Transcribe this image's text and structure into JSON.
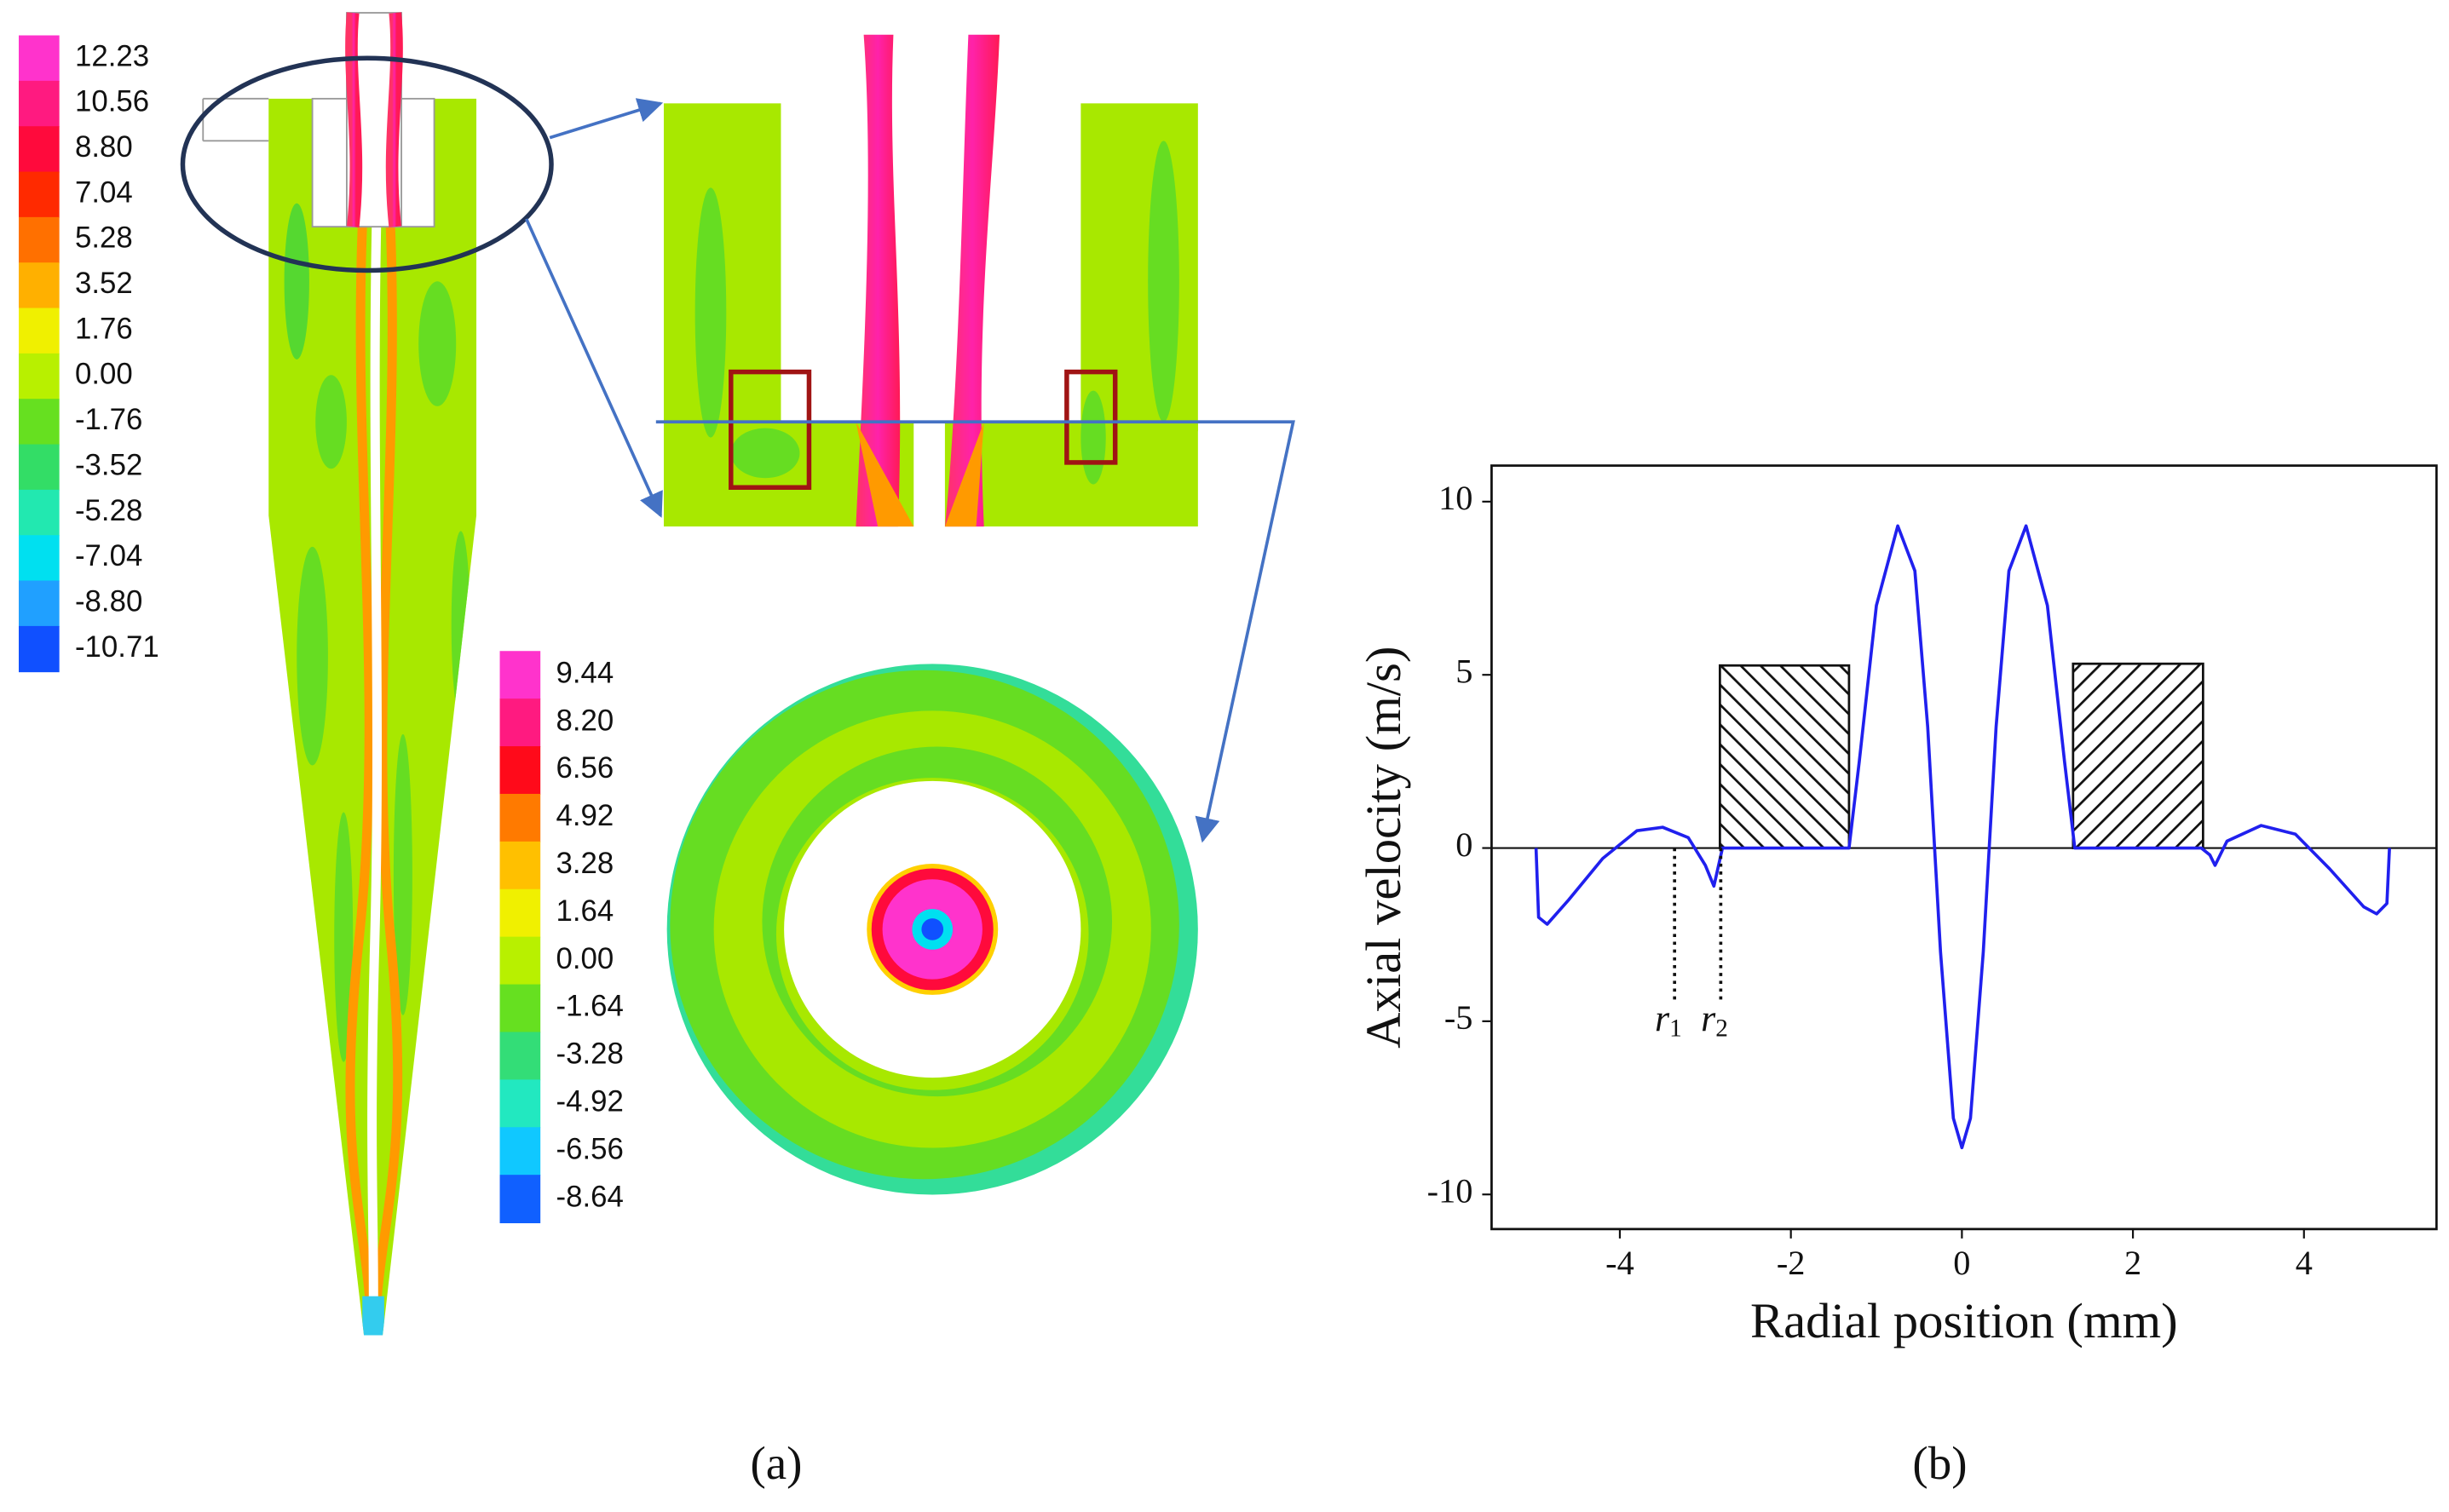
{
  "figure_a": {
    "colorbar_main": {
      "labels": [
        "12.23",
        "10.56",
        "8.80",
        "7.04",
        "5.28",
        "3.52",
        "1.76",
        "0.00",
        "-1.76",
        "-3.52",
        "-5.28",
        "-7.04",
        "-8.80",
        "-10.71"
      ],
      "colors": [
        "#ff33cc",
        "#ff1a80",
        "#ff0a3c",
        "#ff2a00",
        "#ff7000",
        "#ffb000",
        "#f0f000",
        "#b8f000",
        "#66e020",
        "#33dd66",
        "#22e8b0",
        "#00e0f0",
        "#20a0ff",
        "#1050ff"
      ]
    },
    "colorbar_section": {
      "labels": [
        "9.44",
        "8.20",
        "6.56",
        "4.92",
        "3.28",
        "1.64",
        "0.00",
        "-1.64",
        "-3.28",
        "-4.92",
        "-6.56",
        "-8.64"
      ],
      "colors": [
        "#ff33cc",
        "#ff1a80",
        "#ff0a1a",
        "#ff7a00",
        "#ffc000",
        "#f0f000",
        "#b8f000",
        "#66e020",
        "#33dd77",
        "#22e8c0",
        "#10c8ff",
        "#1060ff"
      ]
    }
  },
  "chart_data": {
    "type": "line",
    "xlabel": "Radial position (mm)",
    "ylabel": "Axial velocity (m/s)",
    "xlim": [
      -5.5,
      5.55
    ],
    "ylim": [
      -11,
      11.04
    ],
    "xticks": [
      -4,
      -2,
      0,
      2,
      4
    ],
    "yticks": [
      -10,
      -5,
      0,
      5,
      10
    ],
    "x": [
      -4.98,
      -4.95,
      -4.85,
      -4.6,
      -4.2,
      -3.8,
      -3.5,
      -3.2,
      -3.0,
      -2.9,
      -2.8,
      -1.32,
      -1.2,
      -1.0,
      -0.75,
      -0.55,
      -0.4,
      -0.25,
      -0.1,
      0,
      0.1,
      0.25,
      0.4,
      0.55,
      0.75,
      1.0,
      1.2,
      1.32,
      2.8,
      2.9,
      2.96,
      3.1,
      3.5,
      3.9,
      4.3,
      4.7,
      4.85,
      4.97,
      5.0
    ],
    "series": [
      {
        "color": "#2020ee",
        "values": [
          0,
          -2.0,
          -2.2,
          -1.5,
          -0.3,
          0.5,
          0.6,
          0.3,
          -0.5,
          -1.1,
          0,
          0,
          2.5,
          7.0,
          9.3,
          8.0,
          3.5,
          -3,
          -7.8,
          -8.65,
          -7.8,
          -3,
          3.5,
          8.0,
          9.3,
          7.0,
          2.5,
          0,
          0,
          -0.2,
          -0.5,
          0.2,
          0.65,
          0.4,
          -0.6,
          -1.7,
          -1.9,
          -1.6,
          0
        ]
      }
    ],
    "blocks": [
      {
        "x": [
          -2.83,
          -1.32
        ],
        "top": 5.27
      },
      {
        "x": [
          1.3,
          2.82
        ],
        "top": 5.32
      }
    ],
    "markers": [
      {
        "label": "r",
        "sub": "1",
        "x": -3.36,
        "bottom": -4.4
      },
      {
        "label": "r",
        "sub": "2",
        "x": -2.82,
        "bottom": -4.4
      }
    ],
    "zero_line": true
  },
  "captions": [
    "(a)",
    "(b)"
  ]
}
